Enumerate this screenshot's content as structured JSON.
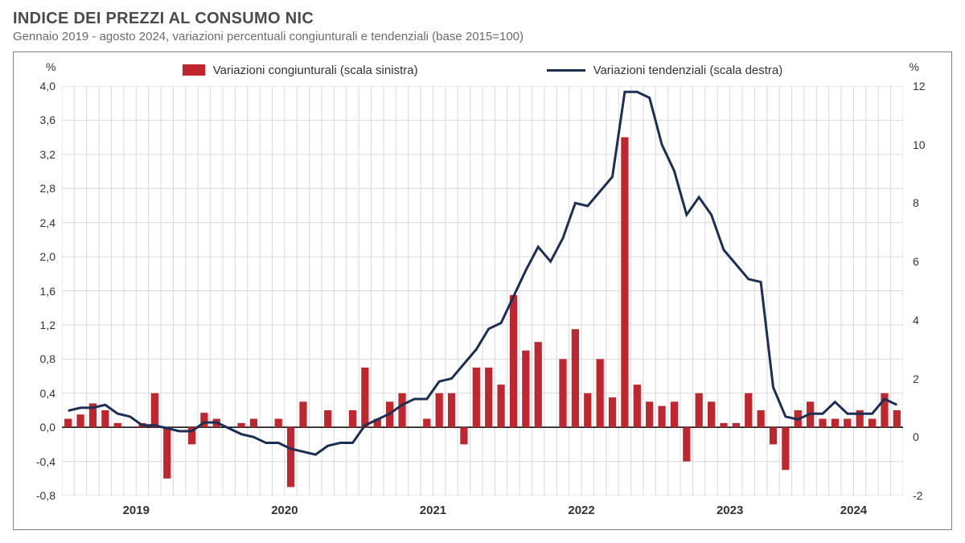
{
  "title": "INDICE DEI PREZZI AL CONSUMO NIC",
  "subtitle": "Gennaio 2019 - agosto 2024, variazioni percentuali congiunturali e tendenziali (base 2015=100)",
  "legend": {
    "bars_label": "Variazioni congiunturali (scala sinistra)",
    "line_label": "Variazioni tendenziali (scala destra)"
  },
  "chart": {
    "type": "combo-bar-line",
    "colors": {
      "bar": "#c0262e",
      "line": "#1b2e55",
      "grid": "#d9d9d9",
      "axis": "#000000",
      "border": "#808080",
      "background": "#ffffff",
      "text": "#333333"
    },
    "line_width": 3,
    "bar_width_ratio": 0.6,
    "y_left": {
      "unit": "%",
      "min": -0.8,
      "max": 4.0,
      "step": 0.4,
      "labels": [
        "-0,8",
        "-0,4",
        "0,0",
        "0,4",
        "0,8",
        "1,2",
        "1,6",
        "2,0",
        "2,4",
        "2,8",
        "3,2",
        "3,6",
        "4,0"
      ]
    },
    "y_right": {
      "unit": "%",
      "min": -2,
      "max": 12,
      "step": 2,
      "labels": [
        "-2",
        "0",
        "2",
        "4",
        "6",
        "8",
        "10",
        "12"
      ]
    },
    "x_years": [
      "2019",
      "2020",
      "2021",
      "2022",
      "2023",
      "2024"
    ],
    "bars": [
      0.1,
      0.15,
      0.28,
      0.2,
      0.05,
      0.0,
      0.05,
      0.4,
      -0.6,
      0.0,
      -0.2,
      0.17,
      0.1,
      0.0,
      0.05,
      0.1,
      0.0,
      0.1,
      -0.7,
      0.3,
      0.0,
      0.2,
      0.0,
      0.2,
      0.7,
      0.1,
      0.3,
      0.4,
      0.0,
      0.1,
      0.4,
      0.4,
      -0.2,
      0.7,
      0.7,
      0.5,
      1.55,
      0.9,
      1.0,
      0.0,
      0.8,
      1.15,
      0.4,
      0.8,
      0.35,
      3.4,
      0.5,
      0.3,
      0.25,
      0.3,
      -0.4,
      0.4,
      0.3,
      0.05,
      0.05,
      0.4,
      0.2,
      -0.2,
      -0.5,
      0.2,
      0.3,
      0.1,
      0.1,
      0.1,
      0.2,
      0.1,
      0.4,
      0.2
    ],
    "line": [
      0.9,
      1.0,
      1.0,
      1.1,
      0.8,
      0.7,
      0.4,
      0.4,
      0.3,
      0.2,
      0.2,
      0.5,
      0.5,
      0.3,
      0.1,
      0.0,
      -0.2,
      -0.2,
      -0.4,
      -0.5,
      -0.6,
      -0.3,
      -0.2,
      -0.2,
      0.4,
      0.6,
      0.8,
      1.1,
      1.3,
      1.3,
      1.9,
      2.0,
      2.5,
      3.0,
      3.7,
      3.9,
      4.8,
      5.7,
      6.5,
      6.0,
      6.8,
      8.0,
      7.9,
      8.4,
      8.9,
      11.8,
      11.8,
      11.6,
      10.0,
      9.1,
      7.6,
      8.2,
      7.6,
      6.4,
      5.9,
      5.4,
      5.3,
      1.7,
      0.7,
      0.6,
      0.8,
      0.8,
      1.2,
      0.8,
      0.8,
      0.8,
      1.3,
      1.1
    ],
    "n_points": 68
  }
}
